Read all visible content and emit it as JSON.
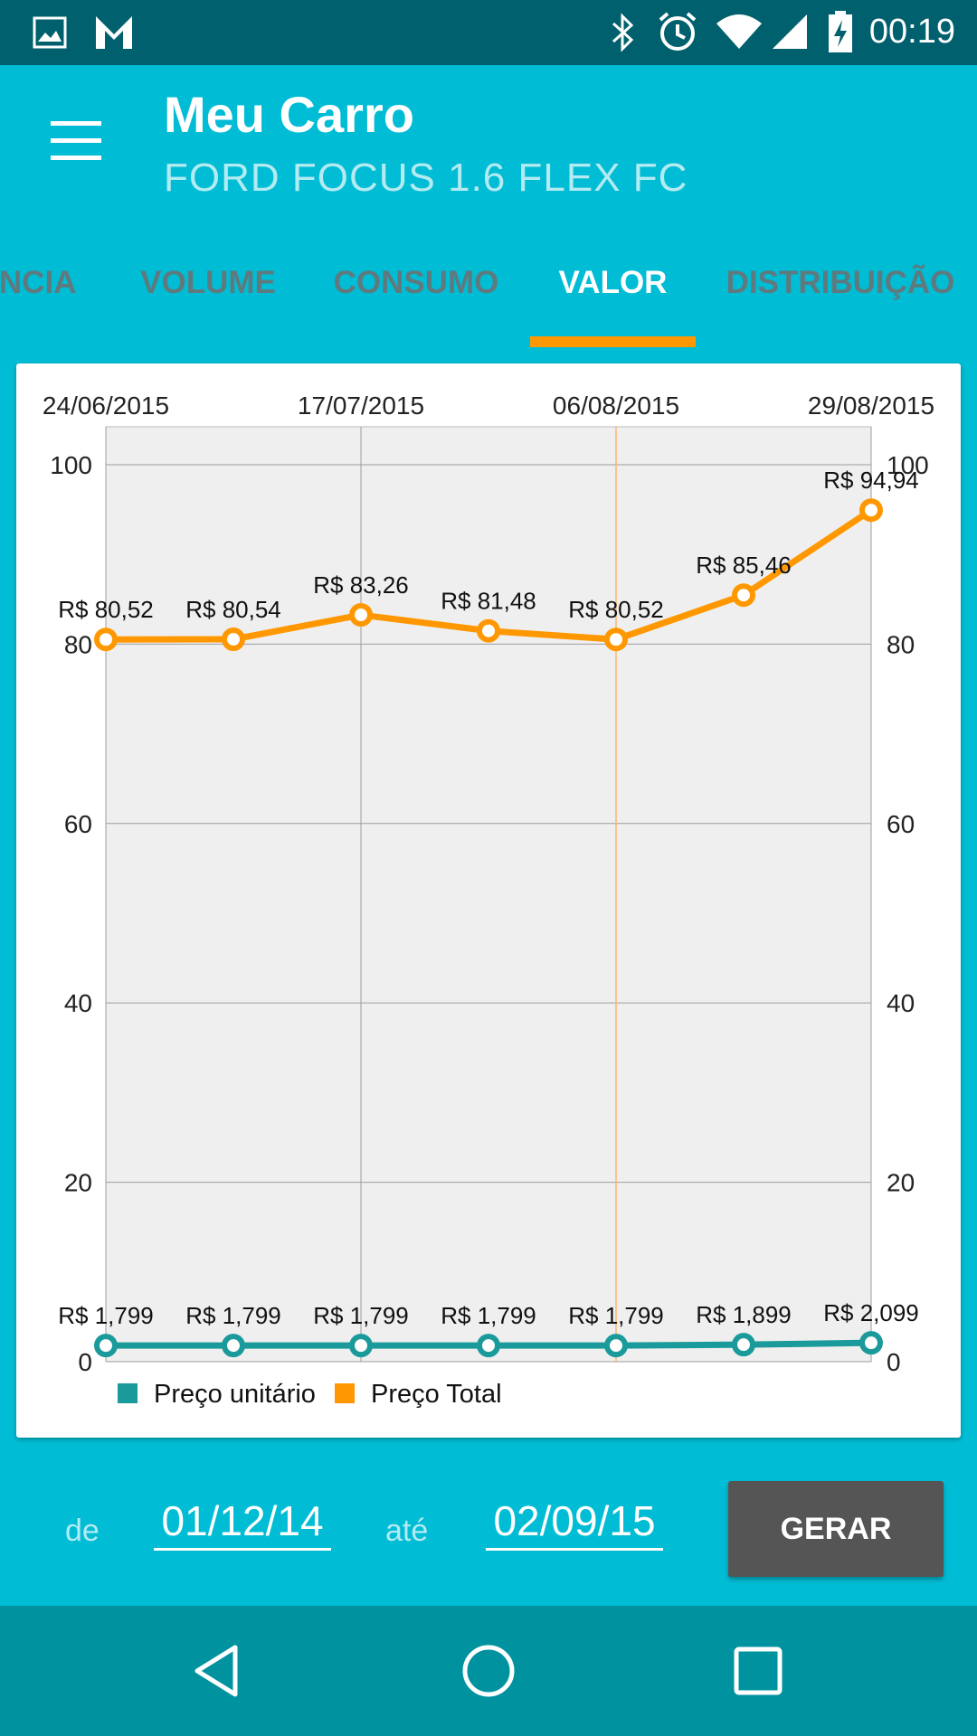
{
  "status": {
    "time": "00:19"
  },
  "app": {
    "title": "Meu Carro",
    "subtitle": "FORD FOCUS 1.6 FLEX FC"
  },
  "tabs": [
    {
      "label": "ÊNCIA",
      "active": false
    },
    {
      "label": "VOLUME",
      "active": false
    },
    {
      "label": "CONSUMO",
      "active": false
    },
    {
      "label": "VALOR",
      "active": true
    },
    {
      "label": "DISTRIBUIÇÃO",
      "active": false
    }
  ],
  "chart_data": {
    "type": "line",
    "x": [
      "24/06/2015",
      "",
      "17/07/2015",
      "",
      "06/08/2015",
      "",
      "29/08/2015"
    ],
    "top_axis_labels": [
      "24/06/2015",
      "17/07/2015",
      "06/08/2015",
      "29/08/2015"
    ],
    "ylim": [
      0,
      100
    ],
    "yticks": [
      "0",
      "20",
      "40",
      "60",
      "80",
      "100"
    ],
    "grid": true,
    "legend_position": "bottom-left",
    "series": [
      {
        "name": "Preço unitário",
        "color": "#1A9A9A",
        "values": [
          1.799,
          1.799,
          1.799,
          1.799,
          1.799,
          1.899,
          2.099
        ],
        "labels": [
          "R$ 1,799",
          "R$ 1,799",
          "R$ 1,799",
          "R$ 1,799",
          "R$ 1,799",
          "R$ 1,899",
          "R$ 2,099"
        ]
      },
      {
        "name": "Preço Total",
        "color": "#FF9800",
        "values": [
          80.52,
          80.54,
          83.26,
          81.48,
          80.52,
          85.46,
          94.94
        ],
        "labels": [
          "R$ 80,52",
          "R$ 80,54",
          "R$ 83,26",
          "R$ 81,48",
          "R$ 80,52",
          "R$ 85,46",
          "R$ 94,94"
        ]
      }
    ]
  },
  "filter": {
    "from_label": "de",
    "from_value": "01/12/14",
    "to_label": "até",
    "to_value": "02/09/15",
    "generate_label": "GERAR"
  }
}
